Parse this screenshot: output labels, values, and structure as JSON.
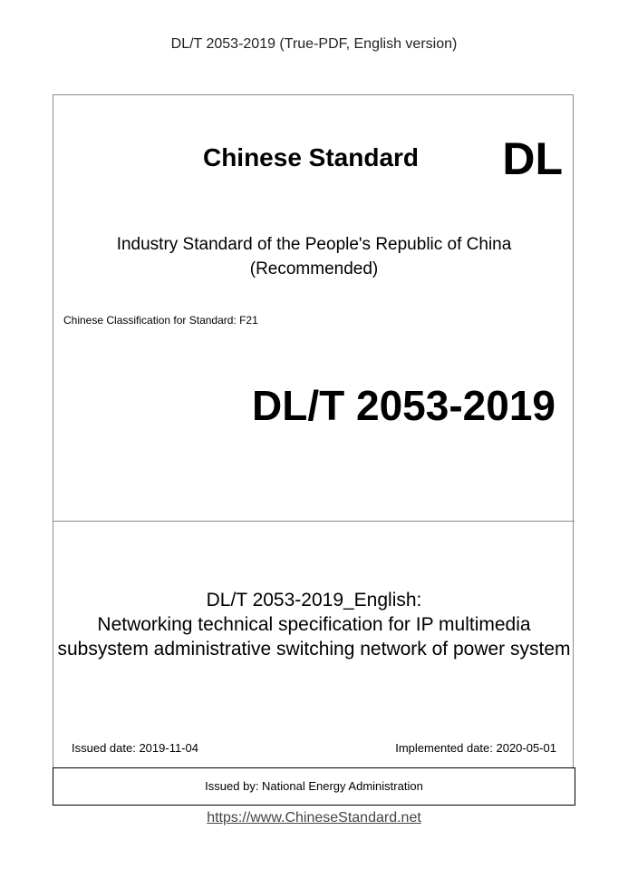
{
  "header": "DL/T 2053-2019 (True-PDF, English version)",
  "cover": {
    "brand_title": "Chinese Standard",
    "code_prefix": "DL",
    "industry_line": "Industry Standard of the People's Republic of China",
    "recommended": "(Recommended)",
    "classification": "Chinese Classification for Standard: F21",
    "standard_number": "DL/T 2053-2019",
    "title_lines": [
      "DL/T 2053-2019_English:",
      "Networking technical specification for IP multimedia",
      "subsystem administrative switching network of power system"
    ],
    "issued_date": "Issued date: 2019-11-04",
    "implemented_date": "Implemented date: 2020-05-01",
    "issued_by": "Issued by: National Energy Administration"
  },
  "footer_link": "https://www.ChineseStandard.net"
}
